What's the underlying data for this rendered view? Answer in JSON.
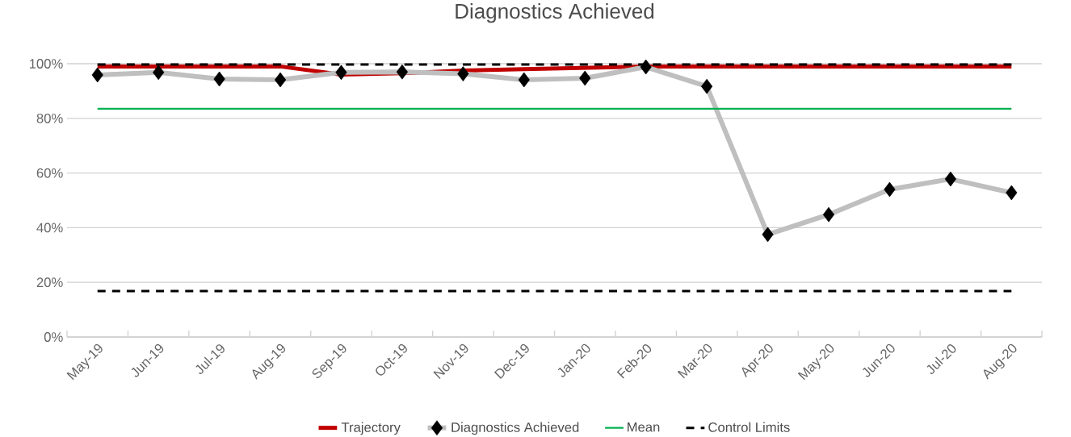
{
  "chart_data": {
    "type": "line",
    "title": "Diagnostics Achieved",
    "categories": [
      "May-19",
      "Jun-19",
      "Jul-19",
      "Aug-19",
      "Sep-19",
      "Oct-19",
      "Nov-19",
      "Dec-19",
      "Jan-20",
      "Feb-20",
      "Mar-20",
      "Apr-20",
      "May-20",
      "Jun-20",
      "Jul-20",
      "Aug-20"
    ],
    "series": [
      {
        "name": "Trajectory",
        "color": "#c00000",
        "marker": "none",
        "line_style": "solid",
        "values": [
          99,
          99,
          99,
          99,
          96,
          96.5,
          97.5,
          98,
          98.5,
          99,
          99,
          99,
          99,
          99,
          99,
          99
        ]
      },
      {
        "name": "Diagnostics Achieved",
        "color": "#bfbfbf",
        "marker": "diamond",
        "line_style": "solid",
        "values": [
          95.9,
          96.8,
          94.4,
          94.1,
          96.8,
          97,
          96.3,
          94.1,
          94.7,
          98.8,
          91.7,
          37.5,
          44.8,
          54,
          57.8,
          52.8
        ]
      },
      {
        "name": "Mean",
        "color": "#00b050",
        "marker": "none",
        "line_style": "solid",
        "values": [
          83.5,
          83.5,
          83.5,
          83.5,
          83.5,
          83.5,
          83.5,
          83.5,
          83.5,
          83.5,
          83.5,
          83.5,
          83.5,
          83.5,
          83.5,
          83.5
        ]
      },
      {
        "name": "Control Limits",
        "color": "#000000",
        "marker": "none",
        "line_style": "dashed",
        "values": [
          99.7,
          99.7,
          99.7,
          99.7,
          99.7,
          99.7,
          99.7,
          99.7,
          99.7,
          99.7,
          99.7,
          99.7,
          99.7,
          99.7,
          99.7,
          99.7
        ]
      },
      {
        "color": "#000000",
        "marker": "none",
        "line_style": "dashed",
        "values": [
          16.8,
          16.8,
          16.8,
          16.8,
          16.8,
          16.8,
          16.8,
          16.8,
          16.8,
          16.8,
          16.8,
          16.8,
          16.8,
          16.8,
          16.8,
          16.8
        ]
      }
    ],
    "ylim": [
      0,
      100
    ],
    "yticks": [
      {
        "value": 0,
        "label": "0%"
      },
      {
        "value": 20,
        "label": "20%"
      },
      {
        "value": 40,
        "label": "40%"
      },
      {
        "value": 60,
        "label": "60%"
      },
      {
        "value": 80,
        "label": "80%"
      },
      {
        "value": 100,
        "label": "100%"
      }
    ],
    "grid": "y",
    "legend": "bottom"
  }
}
